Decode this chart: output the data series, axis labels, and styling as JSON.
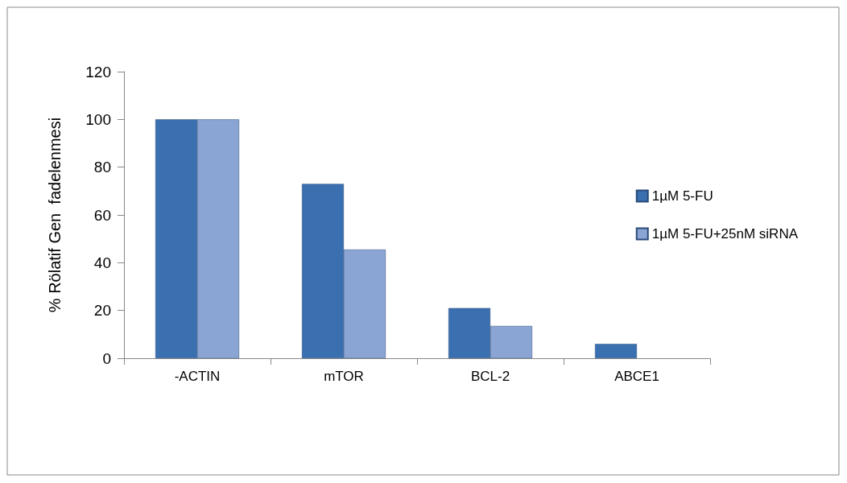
{
  "chart_data": {
    "type": "bar",
    "ylabel": "% Rölatif Gen  fadelenmesi",
    "categories": [
      "-ACTIN",
      "mTOR",
      "BCL-2",
      "ABCE1"
    ],
    "series": [
      {
        "name": "1µM 5-FU",
        "color": "#3a6fb0",
        "values": [
          100,
          73,
          21,
          6
        ]
      },
      {
        "name": "1µM 5-FU+25nM siRNA",
        "color": "#8aa5d4",
        "values": [
          100,
          45.5,
          13.5,
          null
        ]
      }
    ],
    "ylim": [
      0,
      120
    ],
    "yticks": [
      0,
      20,
      40,
      60,
      80,
      100,
      120
    ],
    "grid": false,
    "legend": "right"
  }
}
